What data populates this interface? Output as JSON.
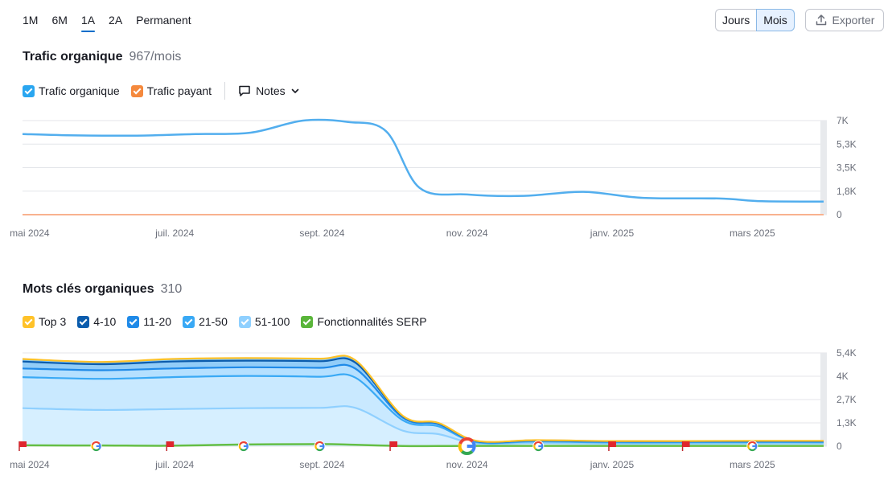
{
  "periods": [
    "1M",
    "6M",
    "1A",
    "2A",
    "Permanent"
  ],
  "active_period": "1A",
  "granularity": {
    "days": "Jours",
    "months": "Mois",
    "active": "Mois"
  },
  "export_label": "Exporter",
  "traffic": {
    "title": "Trafic organique",
    "value": "967/mois",
    "legend": [
      {
        "label": "Trafic organique",
        "color": "#2aa6f0"
      },
      {
        "label": "Trafic payant",
        "color": "#f5893d"
      }
    ],
    "notes_label": "Notes"
  },
  "keywords": {
    "title": "Mots clés organiques",
    "value": "310",
    "legend": [
      {
        "label": "Top 3",
        "color": "#ffc229"
      },
      {
        "label": "4-10",
        "color": "#0b5cad"
      },
      {
        "label": "11-20",
        "color": "#1f8ae8"
      },
      {
        "label": "21-50",
        "color": "#39a9f5"
      },
      {
        "label": "51-100",
        "color": "#8fd0ff"
      },
      {
        "label": "Fonctionnalités SERP",
        "color": "#5ab53a"
      }
    ]
  },
  "colors": {
    "organic": "#52aeee",
    "paid": "#f9b28f",
    "serp": "#65be45",
    "grid": "#e4e6ea",
    "axis_text": "#6b6f7a"
  },
  "chart_data": [
    {
      "type": "line",
      "x_tick_labels": [
        "mai 2024",
        "juil. 2024",
        "sept. 2024",
        "nov. 2024",
        "janv. 2025",
        "mars 2025"
      ],
      "y_tick_labels": [
        "0",
        "1,8K",
        "3,5K",
        "5,3K",
        "7K"
      ],
      "ylim": [
        0,
        7000
      ],
      "x": [
        "2024-04-28",
        "2024-05-20",
        "2024-06-15",
        "2024-07-10",
        "2024-08-02",
        "2024-08-24",
        "2024-09-12",
        "2024-09-28",
        "2024-10-12",
        "2024-11-01",
        "2024-11-25",
        "2024-12-20",
        "2025-01-14",
        "2025-02-15",
        "2025-03-05",
        "2025-03-31"
      ],
      "series": [
        {
          "name": "Trafic organique",
          "values": [
            6000,
            5900,
            5880,
            6000,
            6100,
            7000,
            6900,
            6200,
            2000,
            1500,
            1400,
            1700,
            1250,
            1200,
            1000,
            967
          ]
        },
        {
          "name": "Trafic payant",
          "values": [
            0,
            0,
            0,
            0,
            0,
            0,
            0,
            0,
            0,
            0,
            0,
            0,
            0,
            0,
            0,
            0
          ]
        }
      ]
    },
    {
      "type": "area",
      "stacked": true,
      "x_tick_labels": [
        "mai 2024",
        "juil. 2024",
        "sept. 2024",
        "nov. 2024",
        "janv. 2025",
        "mars 2025"
      ],
      "y_tick_labels": [
        "0",
        "1,3K",
        "2,7K",
        "4K",
        "5,4K"
      ],
      "ylim": [
        0,
        5400
      ],
      "x": [
        "2024-04-28",
        "2024-05-31",
        "2024-06-30",
        "2024-07-31",
        "2024-08-31",
        "2024-09-15",
        "2024-10-05",
        "2024-10-20",
        "2024-11-05",
        "2024-11-30",
        "2024-12-31",
        "2025-01-31",
        "2025-02-28",
        "2025-03-31"
      ],
      "series": [
        {
          "name": "51-100",
          "values": [
            2200,
            2100,
            2150,
            2200,
            2220,
            2220,
            900,
            700,
            150,
            180,
            140,
            140,
            150,
            150
          ]
        },
        {
          "name": "21-50",
          "values": [
            1800,
            1800,
            1850,
            1870,
            1800,
            1750,
            600,
            450,
            80,
            90,
            80,
            80,
            80,
            80
          ]
        },
        {
          "name": "11-20",
          "values": [
            500,
            500,
            500,
            500,
            520,
            520,
            150,
            120,
            40,
            40,
            40,
            40,
            40,
            40
          ]
        },
        {
          "name": "4-10",
          "values": [
            400,
            350,
            400,
            380,
            380,
            350,
            80,
            60,
            30,
            30,
            30,
            30,
            30,
            30
          ]
        },
        {
          "name": "Top 3",
          "values": [
            150,
            130,
            150,
            150,
            150,
            140,
            30,
            20,
            10,
            10,
            10,
            10,
            10,
            10
          ]
        },
        {
          "name": "Fonctionnalités SERP",
          "values": [
            50,
            40,
            30,
            100,
            120,
            80,
            10,
            10,
            20,
            20,
            20,
            20,
            20,
            20
          ],
          "overlay": true
        }
      ],
      "markers": [
        {
          "x": "2024-04-28",
          "type": "flag"
        },
        {
          "x": "2024-05-29",
          "type": "google"
        },
        {
          "x": "2024-06-29",
          "type": "flag"
        },
        {
          "x": "2024-07-30",
          "type": "google"
        },
        {
          "x": "2024-08-31",
          "type": "google"
        },
        {
          "x": "2024-10-01",
          "type": "flag"
        },
        {
          "x": "2024-11-01",
          "type": "google-large"
        },
        {
          "x": "2024-12-01",
          "type": "google"
        },
        {
          "x": "2025-01-01",
          "type": "flag"
        },
        {
          "x": "2025-02-01",
          "type": "flag"
        },
        {
          "x": "2025-03-01",
          "type": "google"
        }
      ]
    }
  ]
}
